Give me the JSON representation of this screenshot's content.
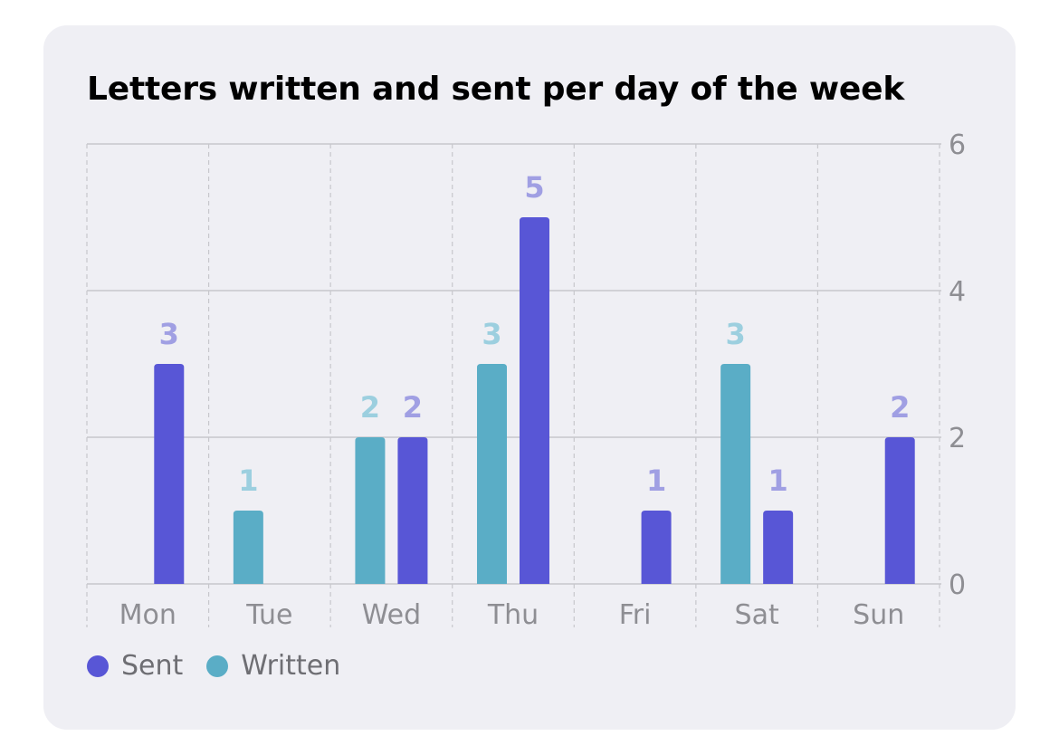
{
  "title": "Letters written and sent per day of the week",
  "colors": {
    "sent": "#5856d6",
    "written": "#5aadc6",
    "sent_label": "#a09fe3",
    "written_label": "#9ccfdf",
    "grid": "#c7c7cc",
    "tick": "#8e8e93"
  },
  "legend": [
    {
      "label": "Sent",
      "color": "#5856d6"
    },
    {
      "label": "Written",
      "color": "#5aadc6"
    }
  ],
  "chart_data": {
    "type": "bar",
    "title": "Letters written and sent per day of the week",
    "categories": [
      "Mon",
      "Tue",
      "Wed",
      "Thu",
      "Fri",
      "Sat",
      "Sun"
    ],
    "series": [
      {
        "name": "Written",
        "color": "#5aadc6",
        "values": [
          0,
          1,
          2,
          3,
          0,
          3,
          0
        ]
      },
      {
        "name": "Sent",
        "color": "#5856d6",
        "values": [
          3,
          0,
          2,
          5,
          1,
          1,
          2
        ]
      }
    ],
    "ylim": [
      0,
      6
    ],
    "yticks": [
      0,
      2,
      4,
      6
    ],
    "y_axis_side": "right",
    "grid": true,
    "legend_position": "bottom-left",
    "data_labels": true
  }
}
